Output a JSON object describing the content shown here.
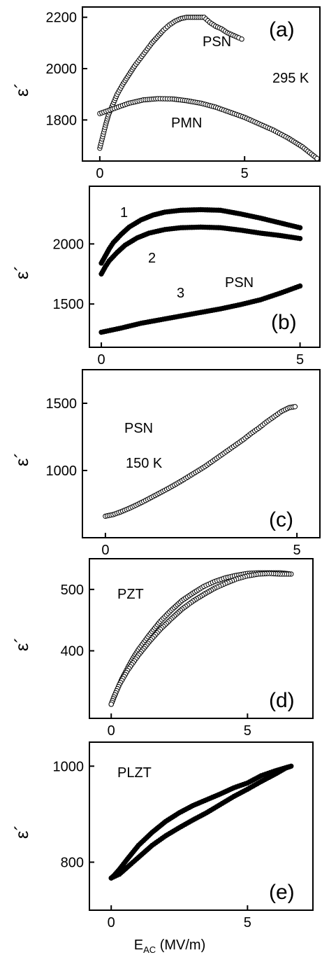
{
  "figure": {
    "xlabel_main": "E",
    "xlabel_sub": "AC",
    "xlabel_unit": " (MV/m)"
  },
  "chart_data": [
    {
      "id": "a",
      "type": "scatter",
      "panel_label": "(a)",
      "ylabel": "ε´",
      "xlim": [
        -0.6,
        7.6
      ],
      "ylim": [
        1640,
        2240
      ],
      "xticks": [
        0,
        5
      ],
      "yticks": [
        1800,
        2000,
        2200
      ],
      "annotations": [
        "PSN",
        "295 K",
        "PMN"
      ],
      "marker": "open",
      "series": [
        {
          "name": "PSN",
          "points": [
            [
              0.0,
              1690
            ],
            [
              0.1,
              1735
            ],
            [
              0.2,
              1780
            ],
            [
              0.3,
              1820
            ],
            [
              0.45,
              1860
            ],
            [
              0.6,
              1900
            ],
            [
              0.8,
              1940
            ],
            [
              1.0,
              1975
            ],
            [
              1.2,
              2010
            ],
            [
              1.4,
              2040
            ],
            [
              1.6,
              2070
            ],
            [
              1.8,
              2100
            ],
            [
              2.0,
              2125
            ],
            [
              2.2,
              2150
            ],
            [
              2.4,
              2170
            ],
            [
              2.6,
              2185
            ],
            [
              2.8,
              2195
            ],
            [
              3.0,
              2200
            ],
            [
              3.2,
              2200
            ],
            [
              3.4,
              2200
            ],
            [
              3.6,
              2200
            ],
            [
              3.8,
              2180
            ],
            [
              4.0,
              2165
            ],
            [
              4.2,
              2155
            ],
            [
              4.4,
              2140
            ],
            [
              4.6,
              2130
            ],
            [
              4.8,
              2120
            ],
            [
              4.9,
              2115
            ]
          ]
        },
        {
          "name": "PMN",
          "points": [
            [
              0.0,
              1825
            ],
            [
              0.5,
              1845
            ],
            [
              1.0,
              1865
            ],
            [
              1.5,
              1878
            ],
            [
              2.0,
              1883
            ],
            [
              2.5,
              1882
            ],
            [
              3.0,
              1875
            ],
            [
              3.5,
              1865
            ],
            [
              4.0,
              1850
            ],
            [
              4.5,
              1830
            ],
            [
              5.0,
              1810
            ],
            [
              5.5,
              1785
            ],
            [
              6.0,
              1760
            ],
            [
              6.5,
              1730
            ],
            [
              7.0,
              1695
            ],
            [
              7.5,
              1650
            ]
          ]
        }
      ]
    },
    {
      "id": "b",
      "type": "scatter",
      "panel_label": "(b)",
      "ylabel": "ε´",
      "xlim": [
        -0.3,
        5.5
      ],
      "ylim": [
        1140,
        2480
      ],
      "xticks": [
        0,
        5
      ],
      "yticks": [
        1500,
        2000
      ],
      "annotations": [
        "1",
        "2",
        "3",
        "PSN"
      ],
      "marker": "solid",
      "series": [
        {
          "name": "1",
          "points": [
            [
              0.0,
              1840
            ],
            [
              0.1,
              1900
            ],
            [
              0.2,
              1960
            ],
            [
              0.3,
              2010
            ],
            [
              0.5,
              2080
            ],
            [
              0.7,
              2140
            ],
            [
              1.0,
              2200
            ],
            [
              1.3,
              2240
            ],
            [
              1.6,
              2265
            ],
            [
              2.0,
              2280
            ],
            [
              2.5,
              2285
            ],
            [
              3.0,
              2280
            ],
            [
              3.5,
              2250
            ],
            [
              4.0,
              2215
            ],
            [
              4.5,
              2175
            ],
            [
              5.0,
              2135
            ]
          ]
        },
        {
          "name": "2",
          "points": [
            [
              0.0,
              1750
            ],
            [
              0.1,
              1810
            ],
            [
              0.2,
              1860
            ],
            [
              0.4,
              1930
            ],
            [
              0.6,
              1990
            ],
            [
              0.9,
              2050
            ],
            [
              1.2,
              2090
            ],
            [
              1.6,
              2120
            ],
            [
              2.0,
              2135
            ],
            [
              2.5,
              2140
            ],
            [
              3.0,
              2135
            ],
            [
              3.5,
              2115
            ],
            [
              4.0,
              2090
            ],
            [
              4.5,
              2070
            ],
            [
              5.0,
              2045
            ]
          ]
        },
        {
          "name": "3",
          "points": [
            [
              0.0,
              1265
            ],
            [
              0.5,
              1300
            ],
            [
              1.0,
              1340
            ],
            [
              1.5,
              1370
            ],
            [
              2.0,
              1400
            ],
            [
              2.5,
              1430
            ],
            [
              3.0,
              1460
            ],
            [
              3.5,
              1495
            ],
            [
              4.0,
              1535
            ],
            [
              4.5,
              1590
            ],
            [
              5.0,
              1650
            ]
          ]
        }
      ]
    },
    {
      "id": "c",
      "type": "scatter",
      "panel_label": "(c)",
      "ylabel": "ε´",
      "annotations": [
        "PSN",
        "150 K"
      ],
      "xlim": [
        -0.6,
        5.6
      ],
      "ylim": [
        500,
        1750
      ],
      "xticks": [
        0,
        5
      ],
      "yticks": [
        1000,
        1500
      ],
      "marker": "open",
      "series": [
        {
          "name": "",
          "points": [
            [
              0.0,
              660
            ],
            [
              0.2,
              672
            ],
            [
              0.4,
              692
            ],
            [
              0.6,
              716
            ],
            [
              0.8,
              742
            ],
            [
              1.0,
              770
            ],
            [
              1.2,
              800
            ],
            [
              1.4,
              830
            ],
            [
              1.6,
              860
            ],
            [
              1.8,
              892
            ],
            [
              2.0,
              925
            ],
            [
              2.2,
              960
            ],
            [
              2.4,
              995
            ],
            [
              2.6,
              1030
            ],
            [
              2.8,
              1070
            ],
            [
              3.0,
              1110
            ],
            [
              3.2,
              1150
            ],
            [
              3.4,
              1190
            ],
            [
              3.6,
              1230
            ],
            [
              3.8,
              1275
            ],
            [
              4.0,
              1315
            ],
            [
              4.2,
              1360
            ],
            [
              4.4,
              1400
            ],
            [
              4.6,
              1440
            ],
            [
              4.8,
              1468
            ],
            [
              4.95,
              1475
            ]
          ]
        }
      ]
    },
    {
      "id": "d",
      "type": "scatter",
      "panel_label": "(d)",
      "ylabel": "ε´",
      "annotations": [
        "PZT"
      ],
      "xlim": [
        -0.8,
        7.4
      ],
      "ylim": [
        290,
        550
      ],
      "xticks": [
        0,
        5
      ],
      "yticks": [
        400,
        500
      ],
      "marker": "open",
      "series": [
        {
          "name": "",
          "points": [
            [
              0.0,
              313
            ],
            [
              0.2,
              335
            ],
            [
              0.4,
              355
            ],
            [
              0.6,
              372
            ],
            [
              0.8,
              388
            ],
            [
              1.0,
              402
            ],
            [
              1.4,
              426
            ],
            [
              1.8,
              448
            ],
            [
              2.2,
              466
            ],
            [
              2.6,
              482
            ],
            [
              3.0,
              494
            ],
            [
              3.4,
              505
            ],
            [
              3.8,
              513
            ],
            [
              4.2,
              519
            ],
            [
              4.6,
              523
            ],
            [
              5.0,
              526
            ],
            [
              5.4,
              527
            ],
            [
              5.8,
              527
            ],
            [
              6.2,
              527
            ],
            [
              6.6,
              525
            ],
            [
              6.2,
              525
            ],
            [
              5.8,
              526
            ],
            [
              5.4,
              525
            ],
            [
              5.0,
              522
            ],
            [
              4.6,
              517
            ],
            [
              4.2,
              510
            ],
            [
              3.8,
              502
            ],
            [
              3.4,
              492
            ],
            [
              3.0,
              481
            ],
            [
              2.6,
              468
            ],
            [
              2.2,
              452
            ],
            [
              1.8,
              435
            ],
            [
              1.4,
              415
            ],
            [
              1.0,
              393
            ],
            [
              0.6,
              368
            ],
            [
              0.3,
              345
            ],
            [
              0.1,
              325
            ],
            [
              0.0,
              313
            ]
          ]
        }
      ]
    },
    {
      "id": "e",
      "type": "scatter",
      "panel_label": "(e)",
      "ylabel": "ε´",
      "annotations": [
        "PLZT"
      ],
      "xlim": [
        -0.8,
        7.4
      ],
      "ylim": [
        700,
        1050
      ],
      "xticks": [
        0,
        5
      ],
      "yticks": [
        800,
        1000
      ],
      "marker": "solid",
      "series": [
        {
          "name": "",
          "points": [
            [
              0.0,
              767
            ],
            [
              0.3,
              775
            ],
            [
              0.6,
              790
            ],
            [
              1.0,
              810
            ],
            [
              1.5,
              835
            ],
            [
              2.0,
              855
            ],
            [
              2.5,
              872
            ],
            [
              3.0,
              888
            ],
            [
              3.5,
              903
            ],
            [
              4.0,
              920
            ],
            [
              4.5,
              937
            ],
            [
              5.0,
              952
            ],
            [
              5.5,
              968
            ],
            [
              6.0,
              983
            ],
            [
              6.4,
              996
            ],
            [
              6.6,
              1000
            ],
            [
              6.3,
              995
            ],
            [
              6.0,
              990
            ],
            [
              5.5,
              980
            ],
            [
              5.0,
              965
            ],
            [
              4.5,
              955
            ],
            [
              4.0,
              942
            ],
            [
              3.5,
              930
            ],
            [
              3.0,
              918
            ],
            [
              2.5,
              903
            ],
            [
              2.0,
              885
            ],
            [
              1.5,
              862
            ],
            [
              1.0,
              835
            ],
            [
              0.6,
              807
            ],
            [
              0.3,
              785
            ],
            [
              0.1,
              772
            ],
            [
              0.0,
              767
            ]
          ]
        }
      ]
    }
  ]
}
